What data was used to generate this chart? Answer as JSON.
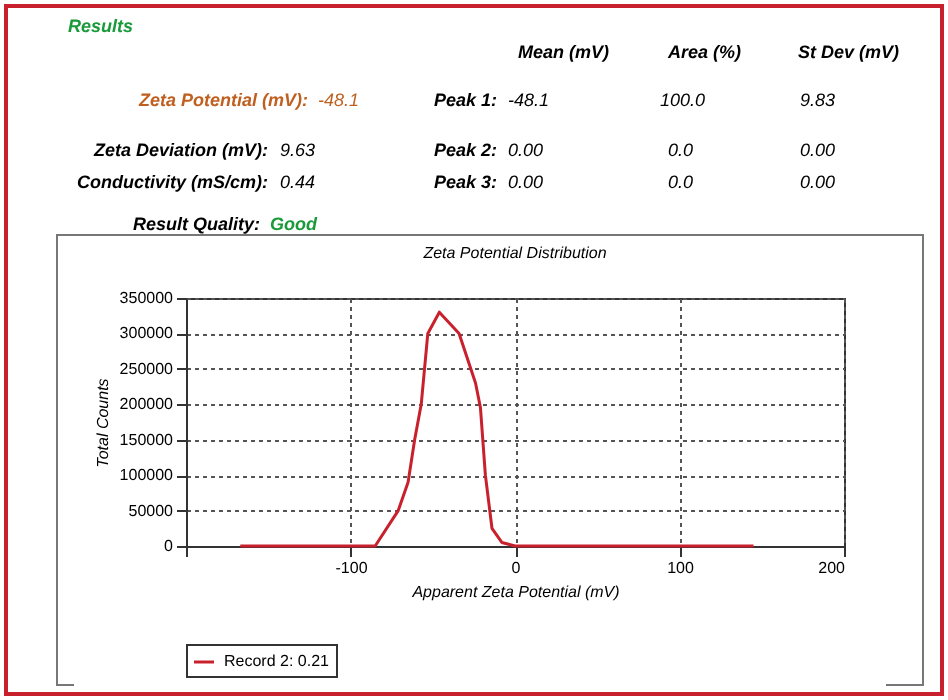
{
  "chart_data": {
    "type": "line",
    "title": "Zeta Potential Distribution",
    "xlabel": "Apparent Zeta Potential (mV)",
    "ylabel": "Total Counts",
    "annotations": [
      "Results",
      "Mean (mV)",
      "Area (%)",
      "St Dev (mV)",
      "Zeta Potential (mV):",
      "-48.1",
      "Peak 1:",
      "-48.1",
      "100.0",
      "9.83",
      "Zeta Deviation (mV):",
      "9.63",
      "Peak 2:",
      "0.00",
      "0.0",
      "0.00",
      "Conductivity (mS/cm):",
      "0.44",
      "Peak 3:",
      "0.00",
      "0.0",
      "0.00",
      "Result Quality:",
      "Good"
    ],
    "xlim": [
      -200,
      200
    ],
    "xticks": [
      {
        "value": -200,
        "label": null
      },
      -100,
      0,
      100,
      200
    ],
    "ylim": [
      0,
      350000
    ],
    "yticks": [
      0,
      50000,
      100000,
      150000,
      200000,
      250000,
      300000,
      350000
    ],
    "grid": true,
    "legend": "bottom",
    "marker": "none",
    "line_style": "solid",
    "series": [
      {
        "name": "Record 2: 0.21",
        "color": "#c8202c",
        "x": [
          -167,
          -120,
          -85,
          -71,
          -65,
          -61,
          -57,
          -53,
          -46,
          -34,
          -24,
          -21,
          -18,
          -14,
          -8,
          0,
          50,
          100,
          145
        ],
        "values": [
          0,
          0,
          0,
          50000,
          90000,
          150000,
          200000,
          300000,
          330000,
          300000,
          230000,
          195000,
          100000,
          25000,
          5000,
          0,
          0,
          0,
          0
        ]
      }
    ]
  }
}
